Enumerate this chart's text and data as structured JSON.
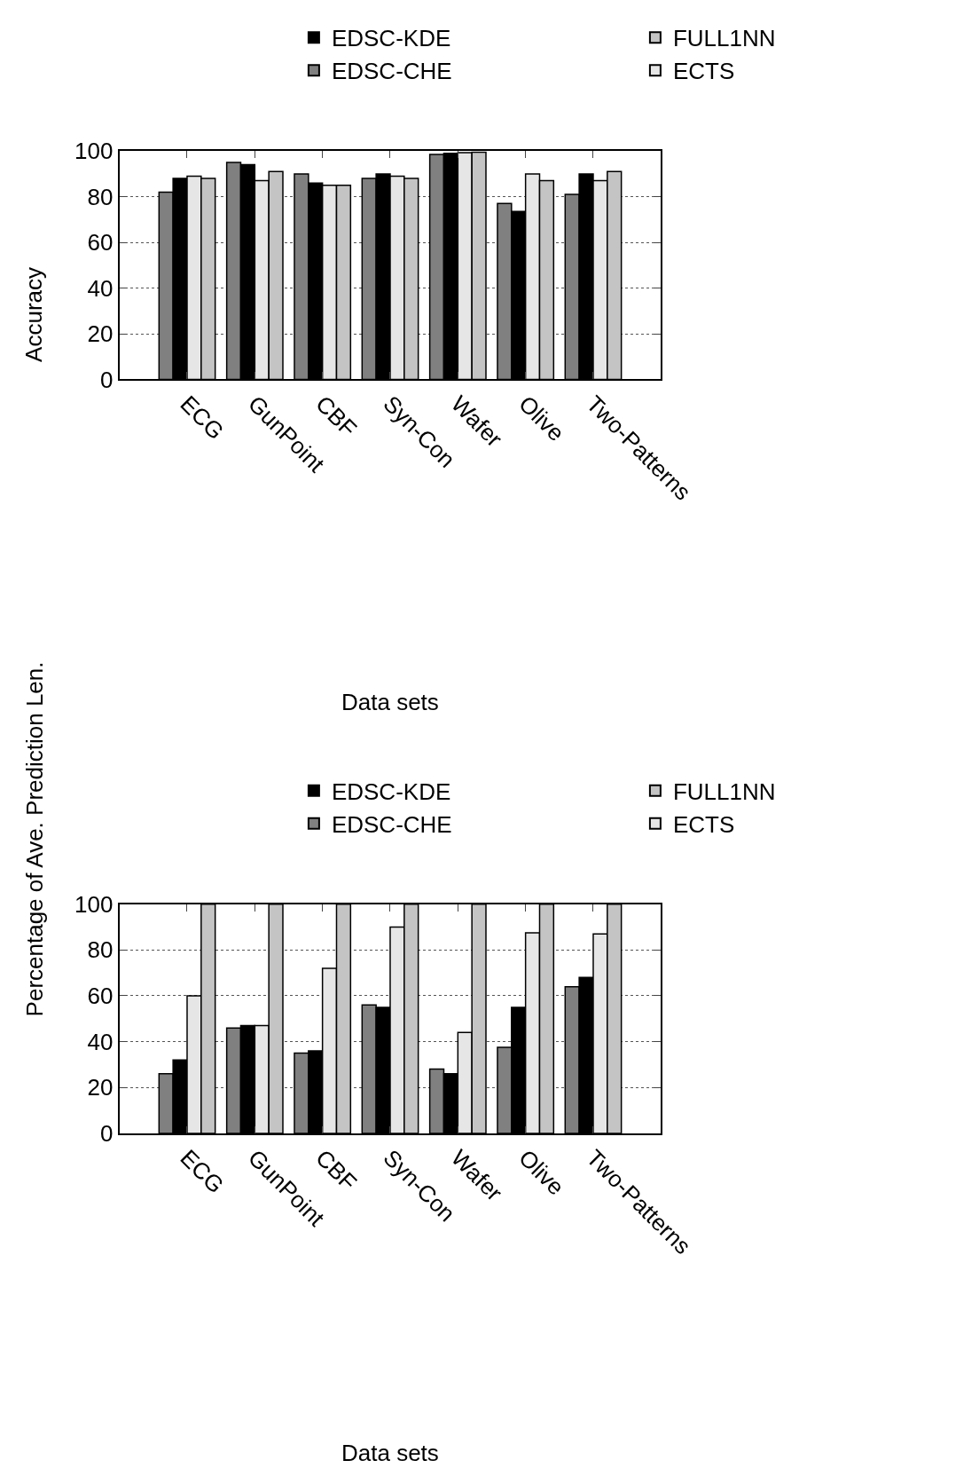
{
  "chart_data": [
    {
      "type": "bar",
      "xlabel": "Data sets",
      "ylabel": "Accuracy",
      "categories": [
        "ECG",
        "GunPoint",
        "CBF",
        "Syn-Con",
        "Wafer",
        "Olive",
        "Two-Patterns"
      ],
      "ylim": [
        0,
        100
      ],
      "yticks": [
        0,
        20,
        40,
        60,
        80,
        100
      ],
      "grid": "y",
      "legend": "top right",
      "series": [
        {
          "name": "EDSC-CHE",
          "color": "#808080",
          "values": [
            82,
            95,
            90,
            88,
            98.5,
            77,
            81
          ]
        },
        {
          "name": "EDSC-KDE",
          "color": "#000000",
          "values": [
            88,
            94,
            86,
            90,
            99,
            73.5,
            90
          ]
        },
        {
          "name": "ECTS",
          "color": "#e6e6e6",
          "values": [
            89,
            87,
            85,
            89,
            99.3,
            90,
            87
          ]
        },
        {
          "name": "FULL1NN",
          "color": "#c4c4c4",
          "values": [
            88,
            91,
            85,
            88,
            99.5,
            87,
            91
          ]
        }
      ]
    },
    {
      "type": "bar",
      "xlabel": "Data sets",
      "ylabel": "Percentage of Ave. Prediction Len.",
      "categories": [
        "ECG",
        "GunPoint",
        "CBF",
        "Syn-Con",
        "Wafer",
        "Olive",
        "Two-Patterns"
      ],
      "ylim": [
        0,
        100
      ],
      "yticks": [
        0,
        20,
        40,
        60,
        80,
        100
      ],
      "grid": "y",
      "legend": "top right",
      "series": [
        {
          "name": "EDSC-CHE",
          "color": "#808080",
          "values": [
            26,
            46,
            35,
            56,
            28,
            37.5,
            64
          ]
        },
        {
          "name": "EDSC-KDE",
          "color": "#000000",
          "values": [
            32,
            47,
            36,
            55,
            26,
            55,
            68
          ]
        },
        {
          "name": "ECTS",
          "color": "#e6e6e6",
          "values": [
            60,
            47,
            72,
            90,
            44,
            87.5,
            87
          ]
        },
        {
          "name": "FULL1NN",
          "color": "#c4c4c4",
          "values": [
            100,
            100,
            100,
            100,
            100,
            100,
            100
          ]
        }
      ]
    }
  ]
}
